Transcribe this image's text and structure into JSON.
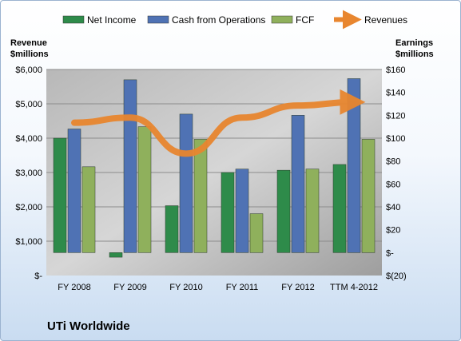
{
  "chart_data": {
    "type": "bar",
    "title": "UTi Worldwide",
    "categories": [
      "FY 2008",
      "FY 2009",
      "FY 2010",
      "FY 2011",
      "FY 2012",
      "TTM 4-2012"
    ],
    "left_axis": {
      "label_line1": "Revenue",
      "label_line2": "$millions",
      "ylim": [
        0,
        6000
      ],
      "ticks": [
        0,
        1000,
        2000,
        3000,
        4000,
        5000,
        6000
      ],
      "tick_labels": [
        "$-",
        "$1,000",
        "$2,000",
        "$3,000",
        "$4,000",
        "$5,000",
        "$6,000"
      ]
    },
    "right_axis": {
      "label_line1": "Earnings",
      "label_line2": "$millions",
      "ylim": [
        -20,
        160
      ],
      "ticks": [
        -20,
        0,
        20,
        40,
        60,
        80,
        100,
        120,
        140,
        160
      ],
      "tick_labels": [
        "$(20)",
        "$-",
        "$20",
        "$40",
        "$60",
        "$80",
        "$100",
        "$120",
        "$140",
        "$160"
      ]
    },
    "series": [
      {
        "name": "Net Income",
        "axis": "right",
        "type": "bar",
        "color": "#2e8b4a",
        "values": [
          100,
          -4,
          41,
          70,
          72,
          77
        ]
      },
      {
        "name": "Cash from Operations",
        "axis": "right",
        "type": "bar",
        "color": "#4f72b4",
        "values": [
          108,
          151,
          121,
          73,
          120,
          152
        ]
      },
      {
        "name": "FCF",
        "axis": "right",
        "type": "bar",
        "color": "#8fb05c",
        "values": [
          75,
          110,
          99,
          34,
          73,
          99
        ]
      },
      {
        "name": "Revenues",
        "axis": "left",
        "type": "line",
        "color": "#e8862f",
        "values": [
          4450,
          4600,
          3550,
          4600,
          4950,
          5050
        ]
      }
    ],
    "grid": true,
    "legend_position": "top"
  }
}
